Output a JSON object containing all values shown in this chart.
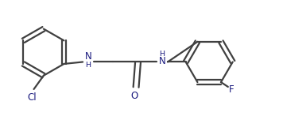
{
  "background_color": "#ffffff",
  "line_color": "#404040",
  "text_color": "#1a1a7e",
  "line_width": 1.6,
  "font_size": 8.5,
  "figsize": [
    3.56,
    1.52
  ],
  "dpi": 100,
  "xlim": [
    0.0,
    7.2
  ],
  "ylim": [
    0.5,
    3.5
  ]
}
